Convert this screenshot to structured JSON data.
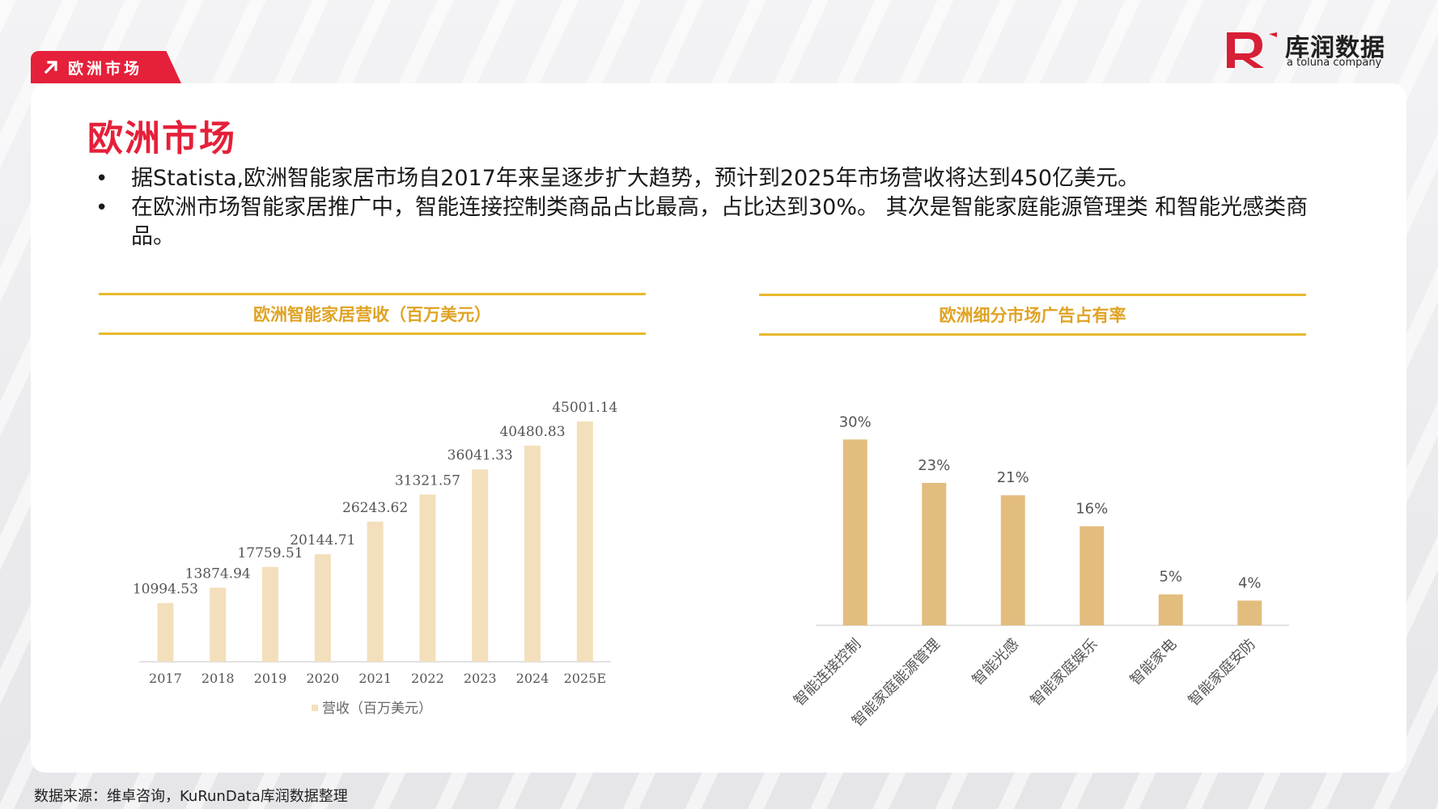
{
  "header": {
    "tag_label": "欧洲市场",
    "logo_cn": "库润数据",
    "logo_en": "a toluna company"
  },
  "title": "欧洲市场",
  "bullets": [
    "据Statista,欧洲智能家居市场自2017年来呈逐步扩大趋势，预计到2025年市场营收将达到450亿美元。",
    "在欧洲市场智能家居推广中，智能连接控制类商品占比最高，占比达到30%。 其次是智能家庭能源管理类 和智能光感类商品。"
  ],
  "colors": {
    "brand_red": "#e5203a",
    "header_gold": "#e0a324",
    "bar_left": "#f3dfbb",
    "bar_right": "#e3bd7e"
  },
  "chart_data": [
    {
      "type": "bar",
      "title": "欧洲智能家居营收（百万美元）",
      "categories": [
        "2017",
        "2018",
        "2019",
        "2020",
        "2021",
        "2022",
        "2023",
        "2024",
        "2025E"
      ],
      "series": [
        {
          "name": "营收（百万美元）",
          "values": [
            10994.53,
            13874.94,
            17759.51,
            20144.71,
            26243.62,
            31321.57,
            36041.33,
            40480.83,
            45001.14
          ]
        }
      ],
      "data_labels": [
        "10994.53",
        "13874.94",
        "17759.51",
        "20144.71",
        "26243.62",
        "31321.57",
        "36041.33",
        "40480.83",
        "45001.14"
      ],
      "ylim": [
        0,
        50000
      ],
      "grid": false,
      "legend": "bottom"
    },
    {
      "type": "bar",
      "title": "欧洲细分市场广告占有率",
      "categories": [
        "智能连接控制",
        "智能家庭能源管理",
        "智能光感",
        "智能家庭娱乐",
        "智能家电",
        "智能家庭安防"
      ],
      "values": [
        30,
        23,
        21,
        16,
        5,
        4
      ],
      "data_labels": [
        "30%",
        "23%",
        "21%",
        "16%",
        "5%",
        "4%"
      ],
      "ylim": [
        0,
        35
      ],
      "grid": false,
      "legend": "none"
    }
  ],
  "source": "数据来源：维卓咨询，KuRunData库润数据整理"
}
